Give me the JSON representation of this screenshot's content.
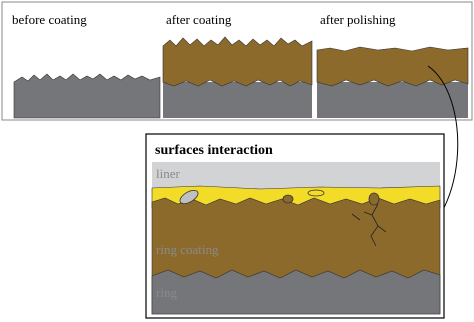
{
  "panels": [
    {
      "label": "before coating"
    },
    {
      "label": "after coating"
    },
    {
      "label": "after polishing"
    }
  ],
  "detail": {
    "title": "surfaces interaction",
    "layers": [
      {
        "label": "liner"
      },
      {
        "label": "ring coating"
      },
      {
        "label": "ring"
      }
    ]
  }
}
